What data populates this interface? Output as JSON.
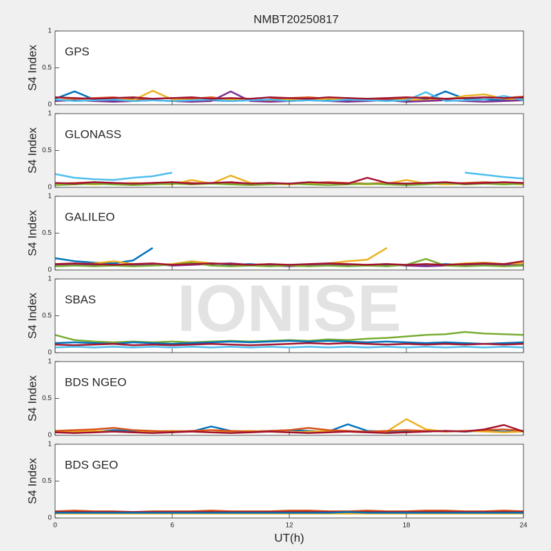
{
  "title": "NMBT20250817",
  "watermark": "IONISE",
  "xlabel": "UT(h)",
  "chart_data": [
    {
      "type": "line",
      "label": "GPS",
      "ylabel": "S4 Index",
      "xlim": [
        0,
        24
      ],
      "ylim": [
        0,
        1
      ],
      "yticks": [
        0,
        0.5,
        1
      ],
      "xticks": [
        0,
        6,
        12,
        18,
        24
      ],
      "x": [
        0,
        1,
        2,
        3,
        4,
        5,
        6,
        7,
        8,
        9,
        10,
        11,
        12,
        13,
        14,
        15,
        16,
        17,
        18,
        19,
        20,
        21,
        22,
        23,
        24
      ],
      "series": [
        {
          "name": "s1",
          "color": "#0072BD",
          "values": [
            0.08,
            0.18,
            0.07,
            0.06,
            0.08,
            0.07,
            null,
            0.07,
            0.06,
            0.05,
            0.06,
            0.07,
            0.08,
            0.09,
            0.07,
            0.06,
            0.08,
            0.07,
            0.06,
            0.07,
            0.18,
            0.08,
            0.07,
            0.06,
            0.08
          ]
        },
        {
          "name": "s2",
          "color": "#D95319",
          "values": [
            0.1,
            0.08,
            0.09,
            0.1,
            0.07,
            0.08,
            0.09,
            0.08,
            0.1,
            0.07,
            null,
            0.08,
            0.09,
            0.1,
            0.08,
            0.09,
            0.07,
            0.08,
            0.09,
            0.1,
            0.08,
            0.09,
            0.1,
            0.09,
            0.11
          ]
        },
        {
          "name": "s3",
          "color": "#EDB120",
          "values": [
            0.06,
            0.07,
            0.05,
            0.08,
            0.06,
            0.19,
            0.07,
            0.06,
            0.08,
            0.07,
            0.06,
            0.05,
            0.07,
            0.06,
            0.08,
            0.07,
            0.06,
            0.05,
            0.07,
            0.06,
            0.07,
            0.12,
            0.14,
            0.08,
            0.07
          ]
        },
        {
          "name": "s4",
          "color": "#7E2F8E",
          "values": [
            0.05,
            0.06,
            0.05,
            0.04,
            0.05,
            0.06,
            0.05,
            0.04,
            0.05,
            0.18,
            0.05,
            0.04,
            0.05,
            0.06,
            0.05,
            0.04,
            0.05,
            0.06,
            0.04,
            0.05,
            0.06,
            0.05,
            0.04,
            0.05,
            0.06
          ]
        },
        {
          "name": "s5",
          "color": "#4DBEEE",
          "values": [
            0.07,
            0.05,
            0.06,
            0.07,
            0.05,
            0.06,
            0.05,
            0.06,
            0.07,
            0.05,
            0.06,
            0.07,
            0.05,
            0.06,
            0.05,
            0.07,
            0.06,
            0.05,
            0.06,
            0.17,
            0.05,
            0.06,
            0.07,
            0.12,
            0.06
          ]
        },
        {
          "name": "s6",
          "color": "#A2142F",
          "values": [
            0.1,
            0.09,
            0.08,
            0.09,
            0.1,
            0.08,
            0.09,
            0.1,
            0.08,
            0.09,
            0.08,
            0.1,
            0.09,
            0.08,
            0.1,
            0.09,
            0.08,
            0.09,
            0.1,
            0.09,
            0.08,
            0.09,
            0.1,
            0.09,
            0.1
          ]
        }
      ]
    },
    {
      "type": "line",
      "label": "GLONASS",
      "ylabel": "S4 Index",
      "xlim": [
        0,
        24
      ],
      "ylim": [
        0,
        1
      ],
      "yticks": [
        0,
        0.5,
        1
      ],
      "xticks": [
        0,
        6,
        12,
        18,
        24
      ],
      "x": [
        0,
        1,
        2,
        3,
        4,
        5,
        6,
        7,
        8,
        9,
        10,
        11,
        12,
        13,
        14,
        15,
        16,
        17,
        18,
        19,
        20,
        21,
        22,
        23,
        24
      ],
      "series": [
        {
          "name": "s1",
          "color": "#4DBEEE",
          "values": [
            0.18,
            0.13,
            0.11,
            0.1,
            0.13,
            0.15,
            0.2,
            null,
            null,
            null,
            null,
            null,
            null,
            null,
            null,
            null,
            null,
            null,
            null,
            null,
            null,
            0.2,
            0.17,
            0.14,
            0.12
          ]
        },
        {
          "name": "s2",
          "color": "#D95319",
          "values": [
            0.05,
            0.06,
            0.07,
            0.06,
            0.05,
            0.06,
            0.07,
            0.06,
            0.05,
            0.06,
            0.05,
            0.04,
            0.05,
            0.06,
            0.07,
            0.06,
            0.05,
            0.06,
            0.05,
            0.06,
            0.05,
            0.06,
            0.07,
            0.06,
            0.05
          ]
        },
        {
          "name": "s3",
          "color": "#EDB120",
          "values": [
            0.04,
            0.05,
            0.04,
            0.05,
            0.06,
            0.05,
            0.04,
            0.1,
            0.05,
            0.16,
            0.06,
            0.05,
            0.04,
            0.05,
            0.06,
            0.05,
            0.04,
            0.05,
            0.1,
            0.05,
            0.04,
            0.05,
            0.06,
            0.05,
            0.04
          ]
        },
        {
          "name": "s4",
          "color": "#77AC30",
          "values": [
            0.03,
            0.04,
            0.05,
            0.04,
            0.03,
            0.04,
            0.05,
            0.04,
            0.05,
            0.04,
            0.03,
            0.04,
            0.05,
            0.04,
            0.03,
            0.04,
            0.05,
            0.04,
            0.03,
            0.04,
            0.06,
            0.04,
            0.05,
            0.04,
            0.05
          ]
        },
        {
          "name": "s5",
          "color": "#A2142F",
          "values": [
            0.06,
            0.05,
            0.07,
            0.06,
            0.05,
            0.06,
            0.07,
            0.05,
            0.06,
            0.07,
            0.05,
            0.06,
            0.05,
            0.07,
            0.06,
            0.05,
            0.13,
            0.06,
            0.05,
            0.06,
            0.07,
            0.05,
            0.06,
            0.07,
            0.06
          ]
        }
      ]
    },
    {
      "type": "line",
      "label": "GALILEO",
      "ylabel": "S4 Index",
      "xlim": [
        0,
        24
      ],
      "ylim": [
        0,
        1
      ],
      "yticks": [
        0,
        0.5,
        1
      ],
      "xticks": [
        0,
        6,
        12,
        18,
        24
      ],
      "x": [
        0,
        1,
        2,
        3,
        4,
        5,
        6,
        7,
        8,
        9,
        10,
        11,
        12,
        13,
        14,
        15,
        16,
        17,
        18,
        19,
        20,
        21,
        22,
        23,
        24
      ],
      "series": [
        {
          "name": "s1",
          "color": "#0072BD",
          "values": [
            0.16,
            0.12,
            0.1,
            0.09,
            0.13,
            0.3,
            null,
            0.08,
            0.09,
            0.07,
            0.08,
            0.06,
            0.07,
            0.06,
            0.08,
            0.07,
            0.06,
            0.07,
            0.06,
            0.07,
            0.08,
            0.07,
            0.06,
            0.07,
            0.08
          ]
        },
        {
          "name": "s2",
          "color": "#EDB120",
          "values": [
            0.08,
            0.07,
            0.09,
            0.12,
            0.08,
            0.07,
            0.08,
            0.12,
            0.09,
            0.08,
            0.07,
            0.08,
            0.06,
            0.07,
            0.09,
            0.12,
            0.14,
            0.3,
            null,
            0.08,
            0.07,
            0.09,
            0.1,
            0.08,
            0.09
          ]
        },
        {
          "name": "s3",
          "color": "#7E2F8E",
          "values": [
            0.07,
            0.08,
            0.07,
            0.06,
            0.07,
            0.08,
            0.06,
            0.07,
            0.08,
            0.09,
            0.07,
            0.06,
            0.05,
            0.06,
            0.07,
            0.06,
            0.07,
            0.08,
            0.06,
            0.05,
            0.06,
            0.07,
            0.08,
            0.07,
            0.06
          ]
        },
        {
          "name": "s4",
          "color": "#77AC30",
          "values": [
            0.05,
            0.06,
            0.05,
            0.06,
            0.05,
            0.06,
            0.07,
            0.1,
            0.06,
            0.05,
            0.06,
            0.05,
            0.06,
            0.05,
            0.06,
            0.05,
            0.06,
            0.05,
            0.07,
            0.15,
            0.06,
            0.05,
            0.06,
            0.05,
            0.06
          ]
        },
        {
          "name": "s5",
          "color": "#A2142F",
          "values": [
            0.08,
            0.09,
            0.08,
            0.07,
            0.08,
            0.09,
            0.07,
            0.08,
            0.09,
            0.08,
            0.07,
            0.08,
            0.07,
            0.08,
            0.09,
            0.08,
            0.07,
            0.08,
            0.07,
            0.08,
            0.07,
            0.08,
            0.09,
            0.08,
            0.12
          ]
        }
      ]
    },
    {
      "type": "line",
      "label": "SBAS",
      "ylabel": "S4 Index",
      "xlim": [
        0,
        24
      ],
      "ylim": [
        0,
        1
      ],
      "yticks": [
        0,
        0.5,
        1
      ],
      "xticks": [
        0,
        6,
        12,
        18,
        24
      ],
      "x": [
        0,
        1,
        2,
        3,
        4,
        5,
        6,
        7,
        8,
        9,
        10,
        11,
        12,
        13,
        14,
        15,
        16,
        17,
        18,
        19,
        20,
        21,
        22,
        23,
        24
      ],
      "series": [
        {
          "name": "s1",
          "color": "#77AC30",
          "values": [
            0.24,
            0.17,
            0.15,
            0.14,
            0.15,
            0.14,
            0.15,
            0.14,
            0.15,
            0.16,
            0.15,
            0.16,
            0.17,
            0.16,
            0.18,
            0.17,
            0.19,
            0.2,
            0.22,
            0.24,
            0.25,
            0.28,
            0.26,
            0.25,
            0.24
          ]
        },
        {
          "name": "s2",
          "color": "#0072BD",
          "values": [
            0.13,
            0.14,
            0.13,
            0.12,
            0.14,
            0.13,
            0.12,
            0.13,
            0.14,
            0.15,
            0.14,
            0.15,
            0.16,
            0.15,
            0.16,
            0.15,
            0.14,
            0.15,
            0.14,
            0.13,
            0.14,
            0.13,
            0.12,
            0.13,
            0.14
          ]
        },
        {
          "name": "s3",
          "color": "#A2142F",
          "values": [
            0.11,
            0.1,
            0.11,
            0.12,
            0.1,
            0.11,
            0.1,
            0.11,
            0.12,
            0.11,
            0.1,
            0.11,
            0.12,
            0.13,
            0.12,
            0.13,
            0.12,
            0.11,
            0.12,
            0.11,
            0.12,
            0.11,
            0.12,
            0.11,
            0.12
          ]
        },
        {
          "name": "s4",
          "color": "#4DBEEE",
          "values": [
            0.07,
            0.08,
            0.07,
            0.08,
            0.07,
            0.08,
            0.07,
            0.08,
            0.07,
            0.08,
            0.07,
            0.08,
            0.07,
            0.08,
            0.07,
            0.08,
            0.07,
            0.08,
            0.07,
            0.08,
            0.07,
            0.08,
            0.07,
            0.08,
            0.07
          ]
        }
      ]
    },
    {
      "type": "line",
      "label": "BDS NGEO",
      "ylabel": "S4 Index",
      "xlim": [
        0,
        24
      ],
      "ylim": [
        0,
        1
      ],
      "yticks": [
        0,
        0.5,
        1
      ],
      "xticks": [
        0,
        6,
        12,
        18,
        24
      ],
      "x": [
        0,
        1,
        2,
        3,
        4,
        5,
        6,
        7,
        8,
        9,
        10,
        11,
        12,
        13,
        14,
        15,
        16,
        17,
        18,
        19,
        20,
        21,
        22,
        23,
        24
      ],
      "series": [
        {
          "name": "s1",
          "color": "#0072BD",
          "values": [
            0.05,
            0.06,
            0.05,
            0.07,
            0.06,
            0.05,
            0.06,
            0.05,
            0.12,
            0.06,
            0.05,
            0.06,
            0.07,
            0.06,
            0.05,
            0.15,
            0.06,
            0.05,
            0.06,
            0.05,
            0.06,
            0.05,
            0.06,
            0.05,
            0.06
          ]
        },
        {
          "name": "s2",
          "color": "#EDB120",
          "values": [
            0.04,
            0.05,
            0.06,
            0.05,
            0.04,
            0.05,
            0.06,
            0.05,
            0.04,
            0.05,
            0.06,
            0.05,
            0.04,
            0.05,
            0.06,
            0.05,
            0.04,
            0.05,
            0.22,
            0.08,
            0.05,
            0.06,
            0.05,
            0.04,
            0.05
          ]
        },
        {
          "name": "s3",
          "color": "#D95319",
          "values": [
            0.06,
            0.07,
            0.08,
            0.1,
            0.07,
            0.06,
            0.05,
            0.06,
            0.07,
            0.06,
            0.05,
            0.06,
            0.07,
            0.1,
            0.07,
            0.06,
            0.05,
            0.06,
            0.07,
            0.06,
            0.05,
            0.06,
            0.07,
            0.08,
            0.06
          ]
        },
        {
          "name": "s4",
          "color": "#A2142F",
          "values": [
            0.04,
            0.03,
            0.04,
            0.05,
            0.04,
            0.03,
            0.04,
            0.05,
            0.04,
            0.03,
            0.04,
            0.05,
            0.04,
            0.03,
            0.04,
            0.05,
            0.04,
            0.03,
            0.04,
            0.05,
            0.06,
            0.05,
            0.08,
            0.14,
            0.05
          ]
        }
      ]
    },
    {
      "type": "line",
      "label": "BDS GEO",
      "ylabel": "S4 Index",
      "xlim": [
        0,
        24
      ],
      "ylim": [
        0,
        1
      ],
      "yticks": [
        0,
        0.5,
        1
      ],
      "xticks": [
        0,
        6,
        12,
        18,
        24
      ],
      "x": [
        0,
        1,
        2,
        3,
        4,
        5,
        6,
        7,
        8,
        9,
        10,
        11,
        12,
        13,
        14,
        15,
        16,
        17,
        18,
        19,
        20,
        21,
        22,
        23,
        24
      ],
      "series": [
        {
          "name": "s1",
          "color": "#D95319",
          "values": [
            0.09,
            0.1,
            0.09,
            0.09,
            0.08,
            0.09,
            0.09,
            0.09,
            0.1,
            0.09,
            0.09,
            0.09,
            0.1,
            0.1,
            0.09,
            0.09,
            0.1,
            0.09,
            0.09,
            0.1,
            0.1,
            0.09,
            0.09,
            0.1,
            0.09
          ]
        },
        {
          "name": "s2",
          "color": "#EDB120",
          "values": [
            0.06,
            0.06,
            0.06,
            0.06,
            0.06,
            0.06,
            0.06,
            0.06,
            0.06,
            0.06,
            0.06,
            0.06,
            0.06,
            0.06,
            0.06,
            0.06,
            0.06,
            0.06,
            0.06,
            0.06,
            0.06,
            0.06,
            0.06,
            0.06,
            0.06
          ]
        },
        {
          "name": "s3",
          "color": "#A2142F",
          "values": [
            0.08,
            0.08,
            0.08,
            0.08,
            0.08,
            0.08,
            0.08,
            0.08,
            0.08,
            0.08,
            0.08,
            0.08,
            0.08,
            0.08,
            0.08,
            0.08,
            0.08,
            0.08,
            0.08,
            0.08,
            0.08,
            0.08,
            0.08,
            0.08,
            0.08
          ]
        },
        {
          "name": "s4",
          "color": "#0072BD",
          "values": [
            0.07,
            0.07,
            0.07,
            0.07,
            0.07,
            0.07,
            0.07,
            0.07,
            0.07,
            0.07,
            0.07,
            0.07,
            0.07,
            0.07,
            0.07,
            0.08,
            0.07,
            0.07,
            0.07,
            0.07,
            0.07,
            0.07,
            0.07,
            0.07,
            0.07
          ]
        }
      ]
    }
  ]
}
